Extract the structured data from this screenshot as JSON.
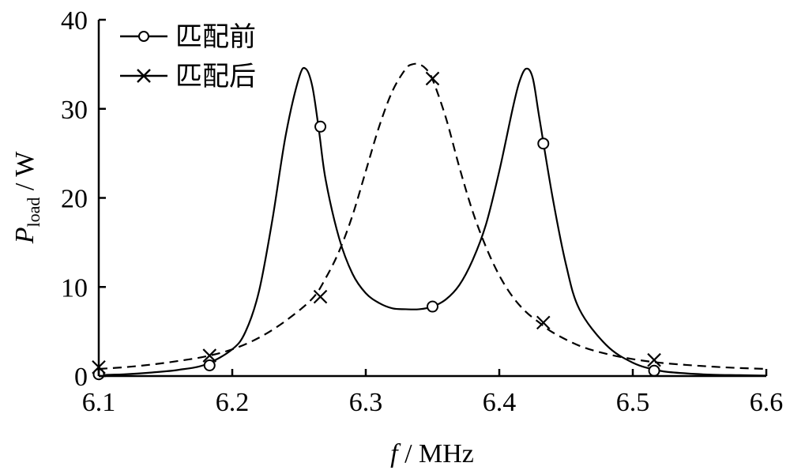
{
  "chart_data": {
    "type": "line",
    "xlabel": {
      "var": "f",
      "unit": "/ MHz"
    },
    "ylabel": {
      "var": "P",
      "sub": "load",
      "unit": "/ W"
    },
    "xlim": [
      6.1,
      6.6
    ],
    "ylim": [
      0,
      40
    ],
    "xticks": [
      "6.1",
      "6.2",
      "6.3",
      "6.4",
      "6.5",
      "6.6"
    ],
    "yticks": [
      "0",
      "10",
      "20",
      "30",
      "40"
    ],
    "grid": false,
    "legend_position": "top-left",
    "series": [
      {
        "name": "匹配前",
        "line": "solid",
        "marker": "circle",
        "x": [
          6.1,
          6.12,
          6.14,
          6.16,
          6.18,
          6.2,
          6.21,
          6.22,
          6.23,
          6.24,
          6.25,
          6.255,
          6.26,
          6.265,
          6.27,
          6.28,
          6.29,
          6.3,
          6.31,
          6.32,
          6.33,
          6.34,
          6.35,
          6.36,
          6.37,
          6.38,
          6.39,
          6.4,
          6.41,
          6.415,
          6.42,
          6.425,
          6.43,
          6.44,
          6.45,
          6.46,
          6.48,
          6.5,
          6.52,
          6.54,
          6.56,
          6.58,
          6.6
        ],
        "y": [
          0.1,
          0.2,
          0.4,
          0.7,
          1.3,
          3.0,
          5.0,
          9.5,
          17.5,
          27.0,
          33.5,
          34.5,
          32.5,
          27.5,
          22.0,
          15.5,
          11.5,
          9.3,
          8.2,
          7.6,
          7.5,
          7.5,
          7.8,
          8.6,
          10.2,
          13.0,
          17.0,
          23.0,
          30.0,
          33.0,
          34.5,
          33.5,
          29.0,
          20.0,
          12.5,
          7.5,
          3.5,
          1.5,
          0.6,
          0.3,
          0.15,
          0.1,
          0.05
        ],
        "markers_x": [
          6.1,
          6.183,
          6.266,
          6.35,
          6.433,
          6.516
        ],
        "markers_y": [
          0.2,
          1.2,
          28.0,
          7.8,
          26.1,
          0.6
        ]
      },
      {
        "name": "匹配后",
        "line": "dashed",
        "marker": "cross",
        "x": [
          6.1,
          6.12,
          6.14,
          6.16,
          6.18,
          6.2,
          6.22,
          6.24,
          6.26,
          6.27,
          6.28,
          6.29,
          6.3,
          6.31,
          6.32,
          6.33,
          6.335,
          6.34,
          6.345,
          6.35,
          6.36,
          6.37,
          6.38,
          6.39,
          6.4,
          6.41,
          6.42,
          6.43,
          6.44,
          6.46,
          6.48,
          6.5,
          6.52,
          6.54,
          6.56,
          6.58,
          6.6
        ],
        "y": [
          0.8,
          1.0,
          1.3,
          1.7,
          2.2,
          3.0,
          4.3,
          6.2,
          8.7,
          11.0,
          14.0,
          18.0,
          23.0,
          28.0,
          32.0,
          34.5,
          35.0,
          35.0,
          34.5,
          33.3,
          29.0,
          23.5,
          18.5,
          14.5,
          11.3,
          8.9,
          7.2,
          6.0,
          4.9,
          3.4,
          2.5,
          1.9,
          1.5,
          1.25,
          1.05,
          0.9,
          0.8
        ],
        "markers_x": [
          6.1,
          6.183,
          6.266,
          6.35,
          6.433,
          6.516
        ],
        "markers_y": [
          1.0,
          2.3,
          8.9,
          33.4,
          6.0,
          1.8
        ]
      }
    ]
  }
}
